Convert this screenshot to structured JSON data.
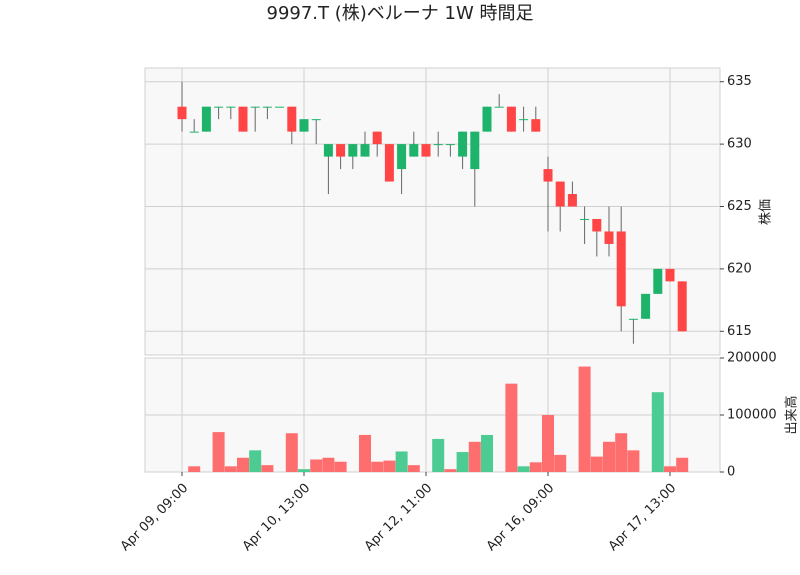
{
  "chart_data": [
    {
      "type": "candlestick",
      "title": "9997.T (株)ベルーナ 1W 時間足",
      "y_label": "株価",
      "up_color": "#1db36b",
      "down_color": "#ff4545",
      "wick_color": "#666666",
      "open": [
        633,
        631,
        631,
        633,
        633,
        633,
        633,
        633,
        633,
        633,
        631,
        632,
        629,
        630,
        629,
        629,
        631,
        630,
        628,
        629,
        630,
        630,
        630,
        629,
        628,
        631,
        633,
        633,
        632,
        632,
        628,
        627,
        626,
        624,
        624,
        623,
        623,
        616,
        616,
        618,
        620,
        619
      ],
      "high": [
        635,
        632,
        633,
        633,
        633,
        633,
        633,
        633,
        633,
        633,
        632,
        632,
        630,
        630,
        630,
        631,
        631,
        630,
        630,
        631,
        630,
        631,
        630,
        631,
        631,
        633,
        634,
        633,
        633,
        633,
        629,
        627,
        627,
        625,
        624,
        625,
        625,
        616,
        618,
        620,
        620,
        619
      ],
      "low": [
        631,
        631,
        631,
        632,
        632,
        631,
        631,
        632,
        633,
        630,
        631,
        630,
        626,
        628,
        628,
        629,
        629,
        627,
        626,
        629,
        629,
        629,
        629,
        628,
        625,
        631,
        633,
        631,
        631,
        631,
        623,
        623,
        625,
        622,
        621,
        621,
        615,
        614,
        616,
        618,
        619,
        615
      ],
      "close": [
        632,
        631,
        633,
        633,
        633,
        631,
        633,
        633,
        633,
        631,
        632,
        632,
        630,
        629,
        630,
        630,
        630,
        627,
        630,
        630,
        629,
        630,
        630,
        631,
        631,
        633,
        633,
        631,
        632,
        631,
        627,
        625,
        625,
        624,
        623,
        622,
        617,
        616,
        618,
        620,
        619,
        615
      ],
      "ylim": [
        613.1,
        636.1
      ],
      "yticks": [
        615,
        620,
        625,
        630,
        635
      ],
      "grid": true
    },
    {
      "type": "bar",
      "y_label": "出来高",
      "categories": [
        "Apr 09, 09:00",
        null,
        null,
        null,
        null,
        null,
        null,
        null,
        null,
        null,
        "Apr 10, 13:00",
        null,
        null,
        null,
        null,
        null,
        null,
        null,
        null,
        null,
        "Apr 12, 11:00",
        null,
        null,
        null,
        null,
        null,
        null,
        null,
        null,
        null,
        "Apr 16, 09:00",
        null,
        null,
        null,
        null,
        null,
        null,
        null,
        null,
        null,
        "Apr 17, 13:00",
        null
      ],
      "values": [
        0,
        10000,
        0,
        70000,
        10000,
        25000,
        38000,
        12000,
        0,
        68000,
        5000,
        22000,
        25000,
        18000,
        0,
        65000,
        18000,
        20000,
        36000,
        12000,
        0,
        58000,
        5000,
        35000,
        53000,
        65000,
        0,
        155000,
        10000,
        17000,
        100000,
        30000,
        0,
        185000,
        27000,
        53000,
        68000,
        38000,
        0,
        140000,
        10000,
        25000
      ],
      "colors": [
        "#ff6e6e",
        "#ff6e6e",
        "#ff6e6e",
        "#ff6e6e",
        "#ff6e6e",
        "#ff6e6e",
        "#4ccb93",
        "#ff6e6e",
        "#ff6e6e",
        "#ff6e6e",
        "#4ccb93",
        "#ff6e6e",
        "#ff6e6e",
        "#ff6e6e",
        "#ff6e6e",
        "#ff6e6e",
        "#ff6e6e",
        "#ff6e6e",
        "#4ccb93",
        "#ff6e6e",
        "#ff6e6e",
        "#4ccb93",
        "#ff6e6e",
        "#4ccb93",
        "#ff6e6e",
        "#4ccb93",
        "#ff6e6e",
        "#ff6e6e",
        "#4ccb93",
        "#ff6e6e",
        "#ff6e6e",
        "#ff6e6e",
        "#ff6e6e",
        "#ff6e6e",
        "#ff6e6e",
        "#ff6e6e",
        "#ff6e6e",
        "#ff6e6e",
        "#ff6e6e",
        "#4ccb93",
        "#ff6e6e",
        "#ff6e6e"
      ],
      "ylim": [
        0,
        200000
      ],
      "yticks": [
        0,
        100000,
        200000
      ],
      "grid": true
    }
  ]
}
